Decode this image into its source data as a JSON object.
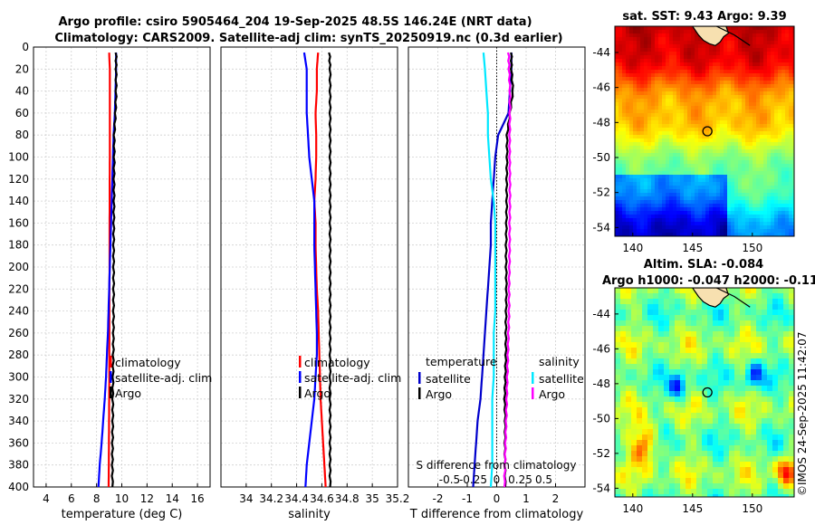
{
  "colors": {
    "climatology": "#ff0000",
    "satellite": "#0000ff",
    "argo": "#000000",
    "t_sat": "#0000cc",
    "s_sat": "#00e8ff",
    "s_argo": "#ff00ff",
    "grid": "#d0d0d0"
  },
  "titles": {
    "main_line1": "Argo profile: csiro 5905464_204 19-Sep-2025 48.5S 146.24E (NRT data)",
    "main_line2": "Climatology: CARS2009. Satellite-adj clim: synTS_20250919.nc (0.3d earlier)",
    "sst_map": "sat. SST: 9.43 Argo: 9.39",
    "sla_line1": "Altim. SLA: -0.084",
    "sla_line2": "Argo h1000: -0.047 h2000: -0.11"
  },
  "credit": "©IMOS 24-Sep-2025 11:42:07",
  "chart_data": [
    {
      "id": "temperature",
      "type": "line",
      "xlabel": "temperature (deg C)",
      "ylabel": "",
      "xlim": [
        3,
        17
      ],
      "ylim": [
        400,
        0
      ],
      "xticks": [
        "4",
        "6",
        "8",
        "10",
        "12",
        "14",
        "16"
      ],
      "yticks": [
        "0",
        "20",
        "40",
        "60",
        "80",
        "100",
        "120",
        "140",
        "160",
        "180",
        "200",
        "220",
        "240",
        "260",
        "280",
        "300",
        "320",
        "340",
        "360",
        "380",
        "400"
      ],
      "legend": [
        "climatology",
        "satellite-adj. clim",
        "Argo"
      ],
      "series": [
        {
          "name": "climatology",
          "color": "#ff0000",
          "x": [
            9.0,
            9.05,
            9.05,
            9.05,
            9.05,
            9.05,
            9.04,
            9.04,
            9.03,
            9.03,
            9.03,
            9.02,
            9.02,
            9.02,
            9.01,
            9.01,
            9.0,
            8.99,
            8.98,
            8.97,
            8.96
          ],
          "y": [
            5,
            20,
            40,
            60,
            80,
            100,
            120,
            140,
            160,
            180,
            200,
            220,
            240,
            260,
            280,
            300,
            320,
            340,
            360,
            380,
            400
          ]
        },
        {
          "name": "satellite-adj. clim",
          "color": "#0000ff",
          "x": [
            9.55,
            9.55,
            9.5,
            9.45,
            9.35,
            9.3,
            9.25,
            9.2,
            9.15,
            9.1,
            9.05,
            9.0,
            8.95,
            8.9,
            8.82,
            8.75,
            8.65,
            8.52,
            8.4,
            8.25,
            8.15
          ],
          "y": [
            5,
            20,
            40,
            60,
            80,
            100,
            120,
            140,
            160,
            180,
            200,
            220,
            240,
            260,
            280,
            300,
            320,
            340,
            360,
            380,
            400
          ]
        },
        {
          "name": "Argo",
          "color": "#000000",
          "x": [
            9.55,
            9.55,
            9.55,
            9.5,
            9.4,
            9.4,
            9.38,
            9.38,
            9.36,
            9.35,
            9.35,
            9.35,
            9.34,
            9.33,
            9.32,
            9.3,
            9.28,
            9.28,
            9.26,
            9.25,
            9.25
          ],
          "y": [
            5,
            20,
            40,
            60,
            80,
            100,
            120,
            140,
            160,
            180,
            200,
            220,
            240,
            260,
            280,
            300,
            320,
            340,
            360,
            380,
            400
          ]
        }
      ]
    },
    {
      "id": "salinity",
      "type": "line",
      "xlabel": "salinity",
      "ylabel": "",
      "xlim": [
        33.8,
        35.2
      ],
      "ylim": [
        400,
        0
      ],
      "xticks": [
        "34",
        "34.2",
        "34.4",
        "34.6",
        "34.8",
        "35",
        "35.2"
      ],
      "legend": [
        "climatology",
        "satellite-adj. clim",
        "Argo"
      ],
      "series": [
        {
          "name": "climatology",
          "color": "#ff0000",
          "x": [
            34.57,
            34.56,
            34.56,
            34.55,
            34.555,
            34.555,
            34.55,
            34.54,
            34.55,
            34.55,
            34.555,
            34.56,
            34.57,
            34.575,
            34.58,
            34.585,
            34.59,
            34.6,
            34.61,
            34.62,
            34.63
          ],
          "y": [
            5,
            20,
            40,
            60,
            80,
            100,
            120,
            140,
            160,
            180,
            200,
            220,
            240,
            260,
            280,
            300,
            320,
            340,
            360,
            380,
            400
          ]
        },
        {
          "name": "satellite-adj. clim",
          "color": "#0000ff",
          "x": [
            34.46,
            34.48,
            34.48,
            34.48,
            34.49,
            34.5,
            34.52,
            34.54,
            34.54,
            34.54,
            34.545,
            34.55,
            34.555,
            34.56,
            34.56,
            34.55,
            34.54,
            34.52,
            34.5,
            34.48,
            34.47
          ],
          "y": [
            5,
            20,
            40,
            60,
            80,
            100,
            120,
            140,
            160,
            180,
            200,
            220,
            240,
            260,
            280,
            300,
            320,
            340,
            360,
            380,
            400
          ]
        },
        {
          "name": "Argo",
          "color": "#000000",
          "x": [
            34.66,
            34.665,
            34.665,
            34.665,
            34.665,
            34.665,
            34.665,
            34.665,
            34.665,
            34.665,
            34.665,
            34.665,
            34.665,
            34.665,
            34.665,
            34.665,
            34.665,
            34.665,
            34.665,
            34.665,
            34.665
          ],
          "y": [
            5,
            20,
            40,
            60,
            80,
            100,
            120,
            140,
            160,
            180,
            200,
            220,
            240,
            260,
            280,
            300,
            320,
            340,
            360,
            380,
            400
          ]
        }
      ]
    },
    {
      "id": "difference",
      "type": "line",
      "xlabel": "T difference from climatology",
      "xlabel_top": "S difference from climatology",
      "xlim": [
        -3,
        3
      ],
      "ylim": [
        400,
        0
      ],
      "xticks": [
        "-2",
        "-1",
        "0",
        "1",
        "2"
      ],
      "xticks_S": [
        "-0.5",
        "-0.25",
        "0",
        "0.25",
        "0.5"
      ],
      "legend_T_title": "temperature",
      "legend_S_title": "salinity",
      "legend_T": [
        "satellite",
        "Argo"
      ],
      "legend_S": [
        "satellite",
        "Argo"
      ],
      "series": [
        {
          "name": "T satellite",
          "color": "#0000cc",
          "x": [
            0.5,
            0.5,
            0.45,
            0.4,
            0.05,
            -0.05,
            -0.1,
            -0.15,
            -0.2,
            -0.2,
            -0.25,
            -0.3,
            -0.35,
            -0.4,
            -0.45,
            -0.5,
            -0.55,
            -0.65,
            -0.7,
            -0.75,
            -0.8
          ],
          "y": [
            5,
            20,
            40,
            60,
            80,
            100,
            120,
            140,
            160,
            180,
            200,
            220,
            240,
            260,
            280,
            300,
            320,
            340,
            360,
            380,
            400
          ]
        },
        {
          "name": "S satellite",
          "color": "#00e8ff",
          "x": [
            -0.45,
            -0.4,
            -0.35,
            -0.3,
            -0.3,
            -0.25,
            -0.2,
            -0.1,
            -0.05,
            -0.05,
            -0.05,
            -0.05,
            -0.05,
            -0.1,
            -0.1,
            -0.1,
            -0.15,
            -0.15,
            -0.15,
            -0.15,
            -0.2
          ],
          "y": [
            5,
            20,
            40,
            60,
            80,
            100,
            120,
            140,
            160,
            180,
            200,
            220,
            240,
            260,
            280,
            300,
            320,
            340,
            360,
            380,
            400
          ]
        },
        {
          "name": "T Argo",
          "color": "#000000",
          "x": [
            0.5,
            0.5,
            0.55,
            0.45,
            0.35,
            0.35,
            0.34,
            0.34,
            0.33,
            0.32,
            0.32,
            0.33,
            0.32,
            0.31,
            0.31,
            0.29,
            0.27,
            0.29,
            0.28,
            0.28,
            0.29
          ],
          "y": [
            5,
            20,
            40,
            60,
            80,
            100,
            120,
            140,
            160,
            180,
            200,
            220,
            240,
            260,
            280,
            300,
            320,
            340,
            360,
            380,
            400
          ]
        },
        {
          "name": "S Argo",
          "color": "#ff00ff",
          "x": [
            0.4,
            0.42,
            0.45,
            0.45,
            0.44,
            0.44,
            0.45,
            0.45,
            0.44,
            0.44,
            0.43,
            0.42,
            0.42,
            0.4,
            0.38,
            0.36,
            0.34,
            0.32,
            0.3,
            0.28,
            0.26
          ],
          "y": [
            5,
            20,
            40,
            60,
            80,
            100,
            120,
            140,
            160,
            180,
            200,
            220,
            240,
            260,
            280,
            300,
            320,
            340,
            360,
            380,
            400
          ]
        }
      ]
    },
    {
      "id": "sst_map",
      "type": "heatmap",
      "xlim": [
        138.5,
        153.5
      ],
      "ylim": [
        -54.5,
        -42.5
      ],
      "xticks": [
        "140",
        "145",
        "150"
      ],
      "yticks": [
        "-44",
        "-46",
        "-48",
        "-50",
        "-52",
        "-54"
      ],
      "marker": [
        146.24,
        -48.5
      ]
    },
    {
      "id": "sla_map",
      "type": "heatmap",
      "xlim": [
        138.5,
        153.5
      ],
      "ylim": [
        -54.5,
        -42.5
      ],
      "xticks": [
        "140",
        "145",
        "150"
      ],
      "yticks": [
        "-44",
        "-46",
        "-48",
        "-50",
        "-52",
        "-54"
      ],
      "marker": [
        146.24,
        -48.5
      ]
    }
  ]
}
